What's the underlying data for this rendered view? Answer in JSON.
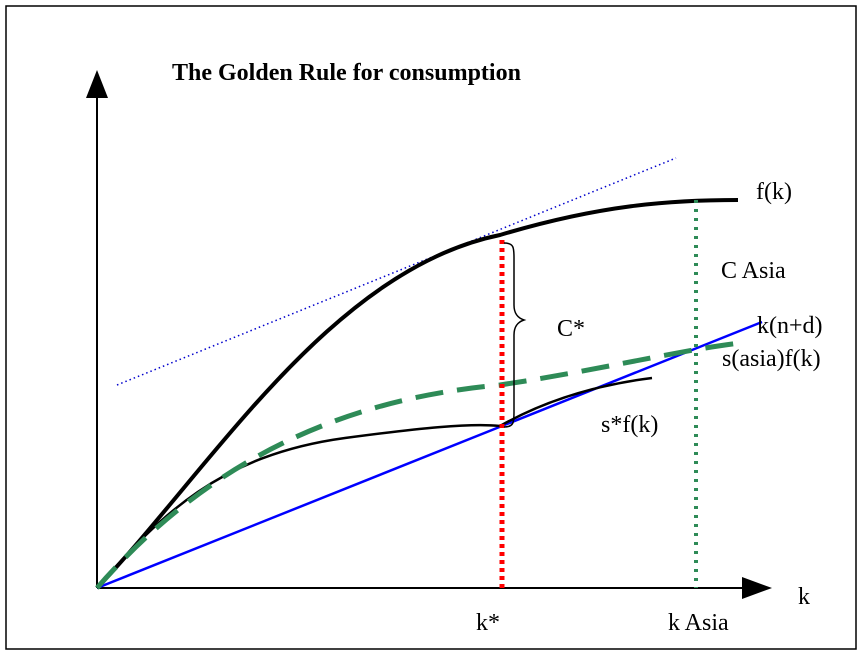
{
  "diagram": {
    "title": "The Golden Rule for consumption",
    "labels": {
      "fk": "f(k)",
      "c_asia": "C Asia",
      "c_star": "C*",
      "knd": "k(n+d)",
      "s_asia_fk": "s(asia)f(k)",
      "s_star_fk": "s*f(k)",
      "k_axis": "k",
      "k_star": "k*",
      "k_asia": "k Asia"
    },
    "colors": {
      "frame": "#000000",
      "production": "#000000",
      "golden_savings": "#000000",
      "depreciation_line": "#0000ff",
      "tangent": "#0000cc",
      "asia_savings": "#2e8b57",
      "k_star_marker": "#ff0000",
      "k_asia_marker": "#2e8b57"
    },
    "line_styles": {
      "tangent": "dotted",
      "asia_savings": "dashed",
      "k_star_marker": "dotted",
      "k_asia_marker": "dotted"
    }
  }
}
